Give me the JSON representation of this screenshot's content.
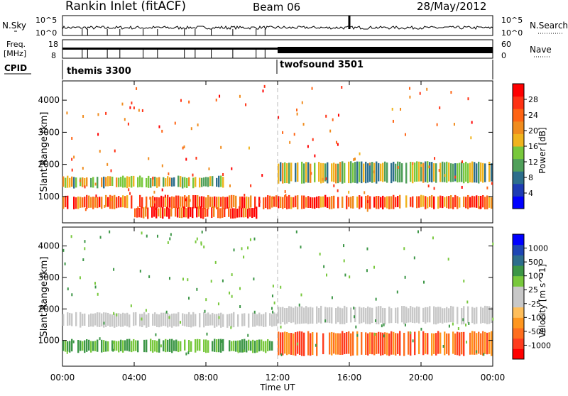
{
  "header": {
    "title": "Rankin Inlet (fitACF)",
    "beam": "Beam 06",
    "date": "28/May/2012"
  },
  "aux_panels": {
    "nsky_label": "N.Sky",
    "nsky_ticks": [
      "10^5",
      "10^0"
    ],
    "nsearch_label": "N.Search",
    "nsearch_ticks": [
      "10^5",
      "10^0"
    ],
    "freq_label": "Freq.",
    "freq_unit": "[MHz]",
    "freq_ticks": [
      "18",
      "8"
    ],
    "nave_label": "Nave",
    "nave_ticks": [
      "60",
      "0"
    ],
    "cpid_label": "CPID",
    "cpid_segments": [
      {
        "name": "themis 3300",
        "start_hour": 0
      },
      {
        "name": "twofsound 3501",
        "start_hour": 12
      }
    ]
  },
  "chart_data": [
    {
      "type": "heatmap",
      "title": "",
      "xlabel": "Time UT",
      "ylabel": "Slant Range [km]",
      "xticks": [
        "00:00",
        "04:00",
        "08:00",
        "12:00",
        "16:00",
        "20:00",
        "00:00"
      ],
      "xlim_hours": [
        0,
        24
      ],
      "ylim": [
        180,
        4600
      ],
      "yticks": [
        1000,
        2000,
        3000,
        4000
      ],
      "colorbar": {
        "label": "Power [dB]",
        "ticks": [
          "28",
          "24",
          "20",
          "16",
          "12",
          "8",
          "4"
        ],
        "colors": [
          "#0000ff",
          "#1e3cb4",
          "#2d6e8c",
          "#50a05a",
          "#78c83c",
          "#f0b41e",
          "#f08c1e",
          "#ff6414",
          "#ff3214",
          "#ff0000"
        ]
      },
      "series": [
        {
          "name": "band",
          "range_km": [
            600,
            1050
          ],
          "start_hour": 0,
          "end_hour": 24,
          "level": 24
        },
        {
          "name": "band",
          "range_km": [
            1250,
            1650
          ],
          "start_hour": 0,
          "end_hour": 9,
          "level": 14
        },
        {
          "name": "band",
          "range_km": [
            1400,
            2100
          ],
          "start_hour": 12,
          "end_hour": 24,
          "level": 12
        },
        {
          "name": "band",
          "range_km": [
            300,
            700
          ],
          "start_hour": 4,
          "end_hour": 11,
          "level": 26
        }
      ]
    },
    {
      "type": "heatmap",
      "title": "",
      "xlabel": "Time UT",
      "ylabel": "Slant Range [km]",
      "xticks": [
        "00:00",
        "04:00",
        "08:00",
        "12:00",
        "16:00",
        "20:00",
        "00:00"
      ],
      "xlim_hours": [
        0,
        24
      ],
      "ylim": [
        180,
        4600
      ],
      "yticks": [
        1000,
        2000,
        3000,
        4000
      ],
      "colorbar": {
        "label": "Velocity [m s^-1]",
        "ticks": [
          "1000",
          "500",
          "100",
          "25",
          "-25",
          "-100",
          "-500",
          "-1000"
        ],
        "colors": [
          "#ff0000",
          "#ff3c1e",
          "#ff6e1e",
          "#ff961e",
          "#ffbe5a",
          "#c8c8c8",
          "#c8c8c8",
          "#78c83c",
          "#3c9646",
          "#2d6e8c",
          "#1e46b4",
          "#0000ff"
        ]
      },
      "series": [
        {
          "name": "band",
          "range_km": [
            600,
            1050
          ],
          "start_hour": 0,
          "end_hour": 12,
          "velocity": 200
        },
        {
          "name": "band",
          "range_km": [
            1400,
            1900
          ],
          "start_hour": 0,
          "end_hour": 12,
          "velocity": 0
        },
        {
          "name": "band",
          "range_km": [
            500,
            1300
          ],
          "start_hour": 12,
          "end_hour": 24,
          "velocity": -300
        },
        {
          "name": "band",
          "range_km": [
            1500,
            2100
          ],
          "start_hour": 12,
          "end_hour": 24,
          "velocity": 0
        }
      ]
    }
  ]
}
